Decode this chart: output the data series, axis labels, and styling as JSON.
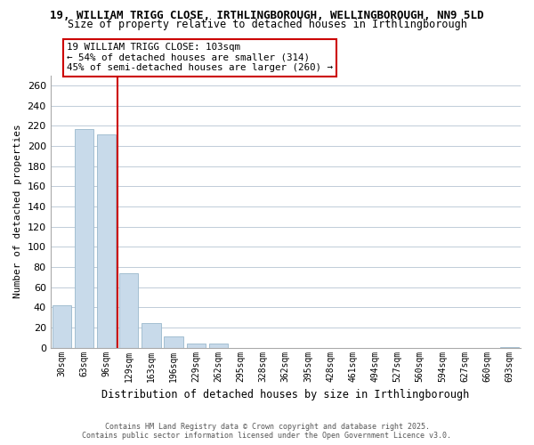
{
  "title_line1": "19, WILLIAM TRIGG CLOSE, IRTHLINGBOROUGH, WELLINGBOROUGH, NN9 5LD",
  "title_line2": "Size of property relative to detached houses in Irthlingborough",
  "xlabel": "Distribution of detached houses by size in Irthlingborough",
  "ylabel": "Number of detached properties",
  "bar_labels": [
    "30sqm",
    "63sqm",
    "96sqm",
    "129sqm",
    "163sqm",
    "196sqm",
    "229sqm",
    "262sqm",
    "295sqm",
    "328sqm",
    "362sqm",
    "395sqm",
    "428sqm",
    "461sqm",
    "494sqm",
    "527sqm",
    "560sqm",
    "594sqm",
    "627sqm",
    "660sqm",
    "693sqm"
  ],
  "bar_values": [
    42,
    217,
    211,
    74,
    24,
    11,
    4,
    4,
    0,
    0,
    0,
    0,
    0,
    0,
    0,
    0,
    0,
    0,
    0,
    0,
    1
  ],
  "bar_color": "#c8daea",
  "bar_edge_color": "#9ab8cc",
  "ylim": [
    0,
    270
  ],
  "yticks": [
    0,
    20,
    40,
    60,
    80,
    100,
    120,
    140,
    160,
    180,
    200,
    220,
    240,
    260
  ],
  "vline_x": 2.5,
  "vline_color": "#cc0000",
  "annotation_line1": "19 WILLIAM TRIGG CLOSE: 103sqm",
  "annotation_line2": "← 54% of detached houses are smaller (314)",
  "annotation_line3": "45% of semi-detached houses are larger (260) →",
  "footer_line1": "Contains HM Land Registry data © Crown copyright and database right 2025.",
  "footer_line2": "Contains public sector information licensed under the Open Government Licence v3.0.",
  "background_color": "#ffffff",
  "grid_color": "#c0ccd8"
}
